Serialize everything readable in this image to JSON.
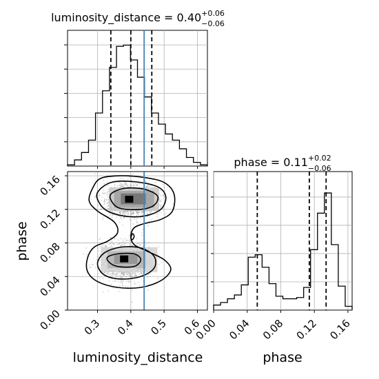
{
  "chart_data": [
    {
      "type": "histogram",
      "panel": "top-left",
      "title_param": "luminosity_distance",
      "title_value": "0.40",
      "title_plus": "+0.06",
      "title_minus": "−0.06",
      "xlim": [
        0.21,
        0.63
      ],
      "bins": [
        0.21,
        0.231,
        0.252,
        0.273,
        0.294,
        0.315,
        0.336,
        0.357,
        0.378,
        0.399,
        0.42,
        0.441,
        0.462,
        0.483,
        0.504,
        0.525,
        0.546,
        0.567,
        0.588,
        0.609,
        0.63
      ],
      "density": [
        0.01,
        0.05,
        0.11,
        0.21,
        0.43,
        0.61,
        0.8,
        0.97,
        0.98,
        0.86,
        0.72,
        0.56,
        0.43,
        0.34,
        0.26,
        0.21,
        0.14,
        0.07,
        0.03,
        0.01
      ],
      "quantile_lines": [
        0.34,
        0.4,
        0.463
      ],
      "truth_line": 0.44,
      "ytick_count": 5,
      "grid": true
    },
    {
      "type": "contour_density",
      "panel": "bottom-left",
      "xlabel": "luminosity_distance",
      "ylabel": "phase",
      "xlim": [
        0.21,
        0.63
      ],
      "ylim": [
        0.0,
        0.165
      ],
      "xticks": [
        "0.3",
        "0.4",
        "0.5",
        "0.6"
      ],
      "xtick_values": [
        0.3,
        0.4,
        0.5,
        0.6
      ],
      "yticks": [
        "0.00",
        "0.04",
        "0.08",
        "0.12",
        "0.16"
      ],
      "ytick_values": [
        0.0,
        0.04,
        0.08,
        0.12,
        0.16
      ],
      "truth_line": 0.44,
      "peaks": [
        {
          "x": 0.395,
          "y": 0.132,
          "label": "upper mode"
        },
        {
          "x": 0.38,
          "y": 0.061,
          "label": "lower mode"
        }
      ],
      "contours": [
        [
          [
            0.285,
            0.145
          ],
          [
            0.31,
            0.157
          ],
          [
            0.37,
            0.16
          ],
          [
            0.44,
            0.158
          ],
          [
            0.5,
            0.152
          ],
          [
            0.53,
            0.138
          ],
          [
            0.525,
            0.118
          ],
          [
            0.49,
            0.108
          ],
          [
            0.44,
            0.103
          ],
          [
            0.41,
            0.098
          ],
          [
            0.4,
            0.088
          ],
          [
            0.41,
            0.078
          ],
          [
            0.45,
            0.07
          ],
          [
            0.5,
            0.06
          ],
          [
            0.52,
            0.048
          ],
          [
            0.49,
            0.035
          ],
          [
            0.43,
            0.027
          ],
          [
            0.36,
            0.027
          ],
          [
            0.3,
            0.034
          ],
          [
            0.27,
            0.046
          ],
          [
            0.27,
            0.062
          ],
          [
            0.29,
            0.075
          ],
          [
            0.33,
            0.082
          ],
          [
            0.36,
            0.092
          ],
          [
            0.35,
            0.105
          ],
          [
            0.3,
            0.118
          ],
          [
            0.275,
            0.13
          ]
        ],
        [
          [
            0.3,
            0.14
          ],
          [
            0.34,
            0.152
          ],
          [
            0.41,
            0.153
          ],
          [
            0.48,
            0.147
          ],
          [
            0.505,
            0.135
          ],
          [
            0.49,
            0.12
          ],
          [
            0.44,
            0.112
          ],
          [
            0.38,
            0.112
          ],
          [
            0.33,
            0.118
          ],
          [
            0.305,
            0.128
          ]
        ],
        [
          [
            0.3,
            0.055
          ],
          [
            0.32,
            0.068
          ],
          [
            0.37,
            0.075
          ],
          [
            0.43,
            0.074
          ],
          [
            0.47,
            0.064
          ],
          [
            0.47,
            0.05
          ],
          [
            0.43,
            0.04
          ],
          [
            0.37,
            0.037
          ],
          [
            0.32,
            0.042
          ]
        ],
        [
          [
            0.34,
            0.138
          ],
          [
            0.38,
            0.145
          ],
          [
            0.44,
            0.144
          ],
          [
            0.48,
            0.136
          ],
          [
            0.47,
            0.125
          ],
          [
            0.43,
            0.12
          ],
          [
            0.37,
            0.121
          ],
          [
            0.345,
            0.128
          ]
        ],
        [
          [
            0.33,
            0.063
          ],
          [
            0.36,
            0.067
          ],
          [
            0.41,
            0.067
          ],
          [
            0.43,
            0.06
          ],
          [
            0.41,
            0.052
          ],
          [
            0.36,
            0.052
          ],
          [
            0.335,
            0.057
          ]
        ],
        [
          [
            0.4,
            0.086
          ],
          [
            0.405,
            0.091
          ],
          [
            0.41,
            0.088
          ],
          [
            0.405,
            0.084
          ]
        ]
      ],
      "grid": true
    },
    {
      "type": "histogram",
      "panel": "bottom-right",
      "title_param": "phase",
      "title_value": "0.11",
      "title_plus": "+0.02",
      "title_minus": "−0.06",
      "xlabel": "phase",
      "xlim": [
        0.0,
        0.165
      ],
      "xticks": [
        "0.00",
        "0.04",
        "0.08",
        "0.12",
        "0.16"
      ],
      "xtick_values": [
        0.0,
        0.04,
        0.08,
        0.12,
        0.16
      ],
      "bins": [
        0.0,
        0.00825,
        0.0165,
        0.02475,
        0.033,
        0.04125,
        0.0495,
        0.05775,
        0.066,
        0.07425,
        0.0825,
        0.09075,
        0.099,
        0.10725,
        0.1155,
        0.12375,
        0.132,
        0.14025,
        0.1485,
        0.15675,
        0.165
      ],
      "density": [
        0.04,
        0.06,
        0.09,
        0.12,
        0.2,
        0.42,
        0.44,
        0.34,
        0.21,
        0.11,
        0.09,
        0.09,
        0.1,
        0.18,
        0.48,
        0.77,
        0.93,
        0.52,
        0.19,
        0.03
      ],
      "quantile_lines": [
        0.052,
        0.114,
        0.134
      ],
      "ytick_count": 4,
      "grid": true
    }
  ]
}
